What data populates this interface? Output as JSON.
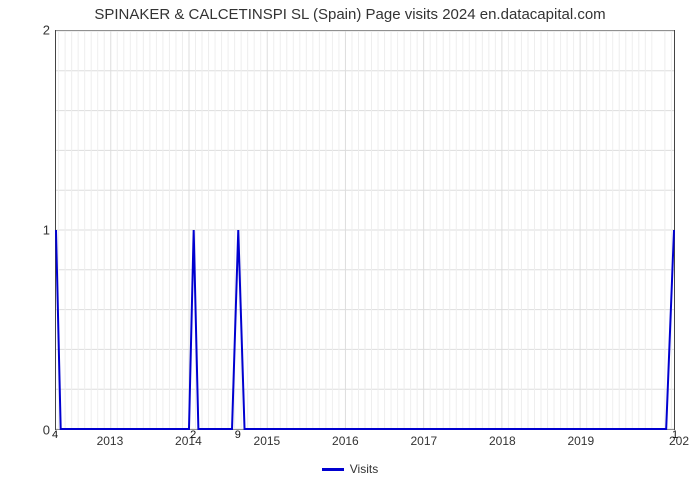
{
  "title": "SPINAKER & CALCETINSPI SL (Spain) Page visits 2024 en.datacapital.com",
  "chart": {
    "type": "line",
    "line_color": "#0000d0",
    "line_width": 2,
    "background_color": "#ffffff",
    "grid_color": "#dddddd",
    "border_color": "#444444",
    "title_fontsize": 15,
    "tick_fontsize": 12,
    "y": {
      "min": 0,
      "max": 2,
      "ticks": [
        0,
        1,
        2
      ],
      "minor_ticks": 4
    },
    "x": {
      "min": 2012.3,
      "max": 2020.2,
      "ticks": [
        2013,
        2014,
        2015,
        2016,
        2017,
        2018,
        2019
      ],
      "right_edge_label": "202",
      "months_per_major": 12
    },
    "series": {
      "name": "Visits",
      "points": [
        {
          "x": 2012.3,
          "y": 1.0
        },
        {
          "x": 2012.36,
          "y": 0.0
        },
        {
          "x": 2014.0,
          "y": 0.0
        },
        {
          "x": 2014.06,
          "y": 1.0
        },
        {
          "x": 2014.12,
          "y": 0.0
        },
        {
          "x": 2014.55,
          "y": 0.0
        },
        {
          "x": 2014.63,
          "y": 1.0
        },
        {
          "x": 2014.71,
          "y": 0.0
        },
        {
          "x": 2020.1,
          "y": 0.0
        },
        {
          "x": 2020.2,
          "y": 1.0
        }
      ],
      "data_labels": [
        {
          "x": 2012.3,
          "text": "4"
        },
        {
          "x": 2014.06,
          "text": "2"
        },
        {
          "x": 2014.63,
          "text": "9"
        },
        {
          "x": 2020.2,
          "text": "1"
        }
      ]
    },
    "legend": {
      "label": "Visits",
      "color": "#0000d0"
    }
  }
}
